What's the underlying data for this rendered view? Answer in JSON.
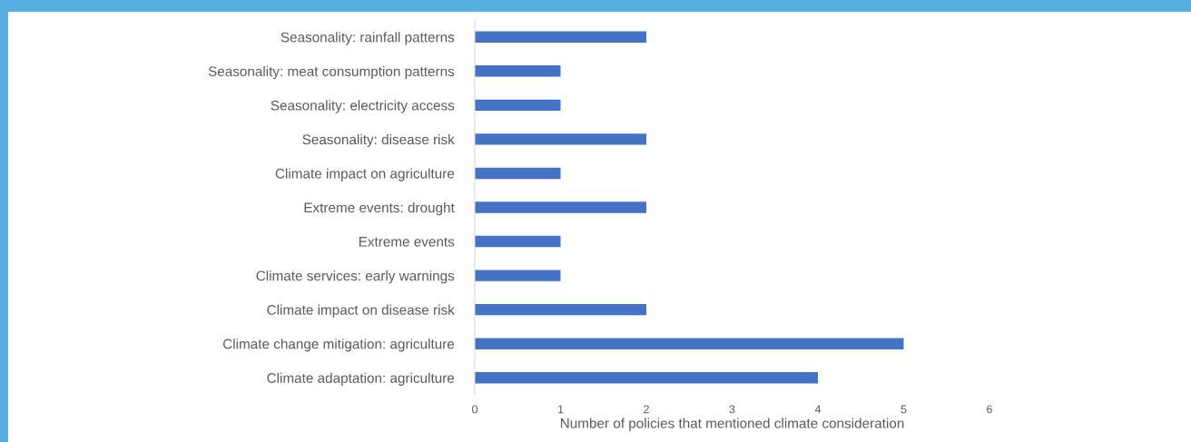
{
  "chart_data": {
    "type": "bar",
    "orientation": "horizontal",
    "xlabel": "Number of policies that mentioned climate consideration",
    "categories": [
      "Seasonality: rainfall patterns",
      "Seasonality: meat consumption patterns",
      "Seasonality: electricity access",
      "Seasonality: disease risk",
      "Climate impact on agriculture",
      "Extreme events: drought",
      "Extreme events",
      "Climate services: early warnings",
      "Climate impact on disease risk",
      "Climate change mitigation: agriculture",
      "Climate adaptation: agriculture"
    ],
    "values": [
      2,
      1,
      1,
      2,
      1,
      2,
      1,
      1,
      2,
      5,
      4
    ],
    "color": "#4472c4",
    "xlim": [
      0,
      6
    ],
    "xticks": [
      0,
      1,
      2,
      3,
      4,
      5,
      6
    ]
  }
}
